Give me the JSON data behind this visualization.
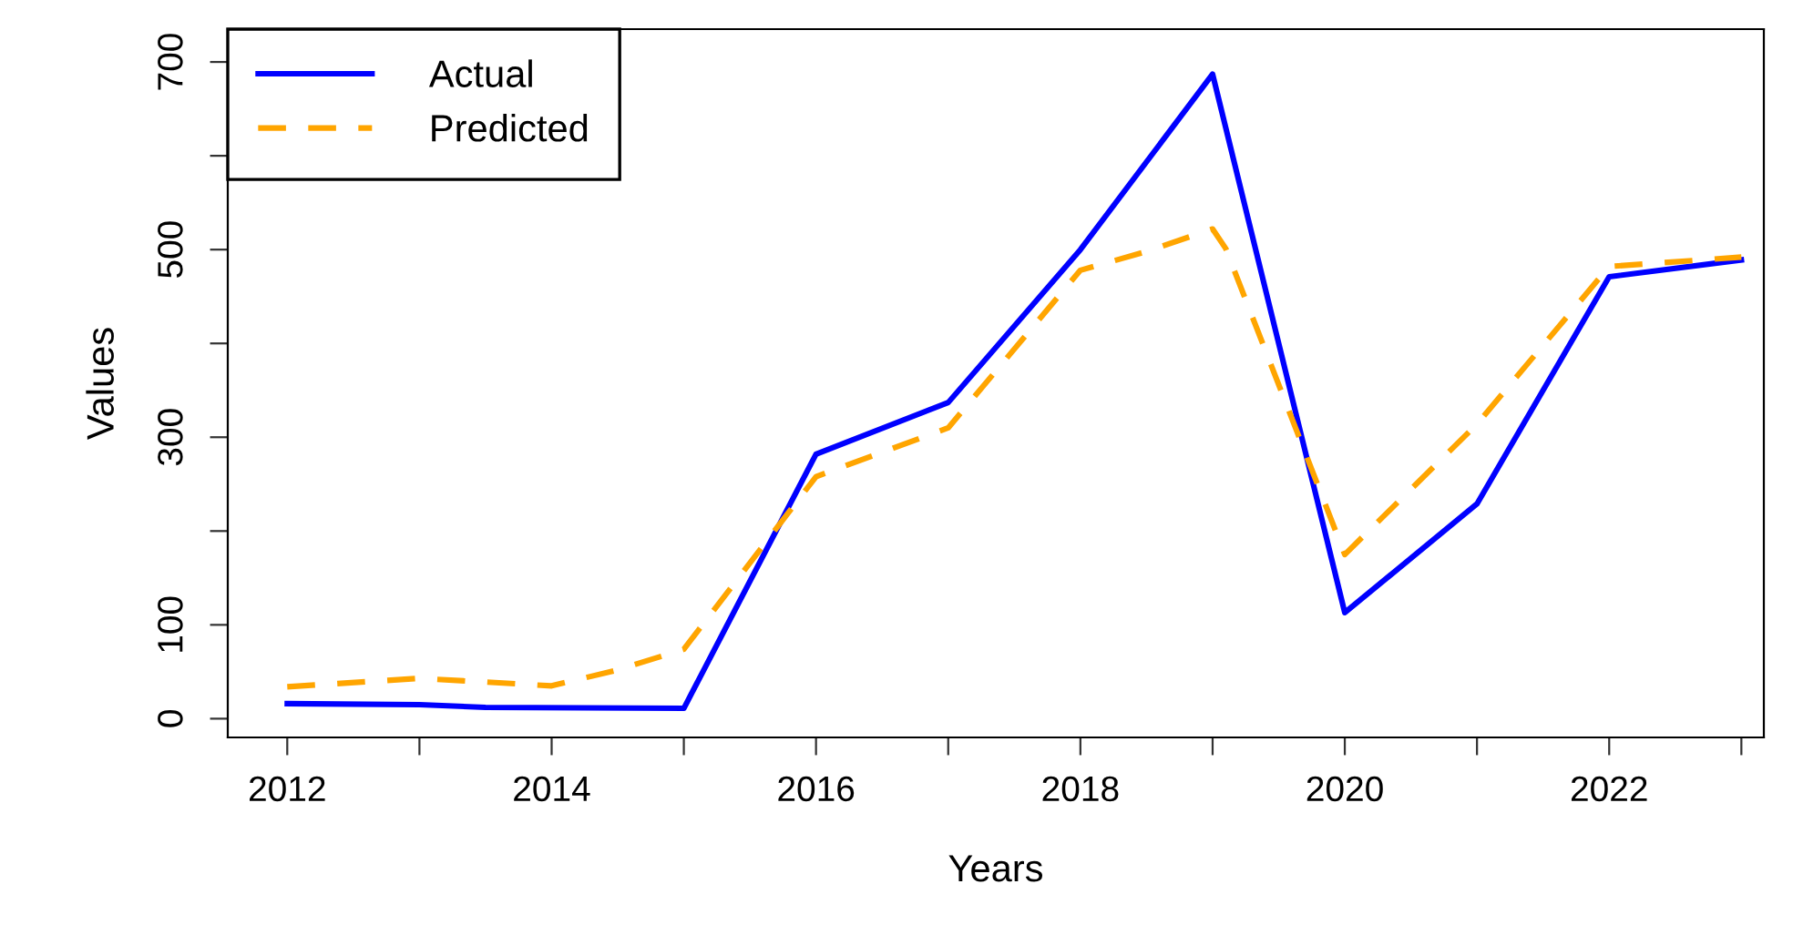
{
  "chart_data": {
    "type": "line",
    "xlabel": "Years",
    "ylabel": "Values",
    "xlim": [
      2011.55,
      2023.17
    ],
    "ylim": [
      -20,
      735
    ],
    "xticks": [
      2012,
      {
        "value": 2013,
        "label": null
      },
      2014,
      {
        "value": 2015,
        "label": null
      },
      2016,
      {
        "value": 2017,
        "label": null
      },
      2018,
      {
        "value": 2019,
        "label": null
      },
      2020,
      {
        "value": 2021,
        "label": null
      },
      2022,
      {
        "value": 2023,
        "label": null
      }
    ],
    "yticks": [
      0,
      100,
      {
        "value": 200,
        "label": null
      },
      300,
      {
        "value": 400,
        "label": null
      },
      500,
      {
        "value": 600,
        "label": null
      },
      700
    ],
    "grid": false,
    "legend": "top left",
    "series": [
      {
        "name": "Actual",
        "color": "#0000ff",
        "line_style": "solid",
        "x": [
          2012,
          2013,
          2013.5,
          2015,
          2016,
          2017,
          2018,
          2019,
          2020,
          2021,
          2022,
          2023
        ],
        "values": [
          16,
          15,
          12,
          11,
          282,
          337,
          500,
          687,
          113,
          229,
          471,
          489
        ]
      },
      {
        "name": "Predicted",
        "color": "#ffa500",
        "line_style": "dashed",
        "x": [
          2012,
          2013,
          2014,
          2014.5,
          2015,
          2016,
          2017,
          2018,
          2018.5,
          2019,
          2019.1,
          2020,
          2021,
          2022,
          2023
        ],
        "values": [
          34,
          43,
          35,
          52,
          74,
          258,
          310,
          478,
          498,
          522,
          501,
          175,
          314,
          482,
          492
        ]
      }
    ]
  }
}
